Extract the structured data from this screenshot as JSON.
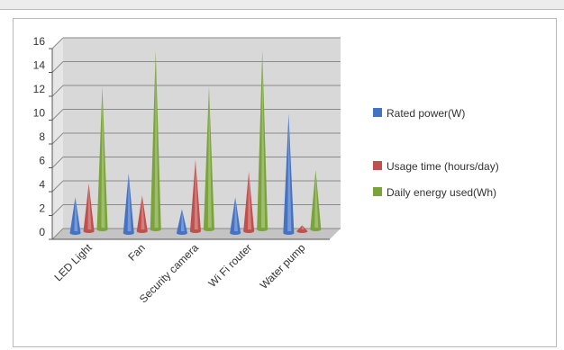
{
  "colors": {
    "series": [
      "#4472c4",
      "#c0504d",
      "#7aa33a"
    ],
    "plot_bg": "#d8d8d8",
    "grid": "#8a8a8a"
  },
  "chart_data": {
    "type": "bar",
    "categories": [
      "LED Light",
      "Fan",
      "Security camera",
      "Wi Fi router",
      "Water pump"
    ],
    "series": [
      {
        "name": "Rated power(W)",
        "values": [
          3,
          5,
          2,
          3,
          10
        ]
      },
      {
        "name": "Usage time (hours/day)",
        "values": [
          4,
          3,
          6,
          5,
          0.5
        ]
      },
      {
        "name": "Daily energy used(Wh)",
        "values": [
          12,
          15,
          12,
          15,
          5
        ]
      }
    ],
    "yticks": [
      "0",
      "2",
      "4",
      "6",
      "8",
      "10",
      "12",
      "14",
      "16"
    ],
    "ylim": [
      0,
      16
    ],
    "grid": true,
    "legend": "right",
    "xlabel": "",
    "ylabel": ""
  }
}
